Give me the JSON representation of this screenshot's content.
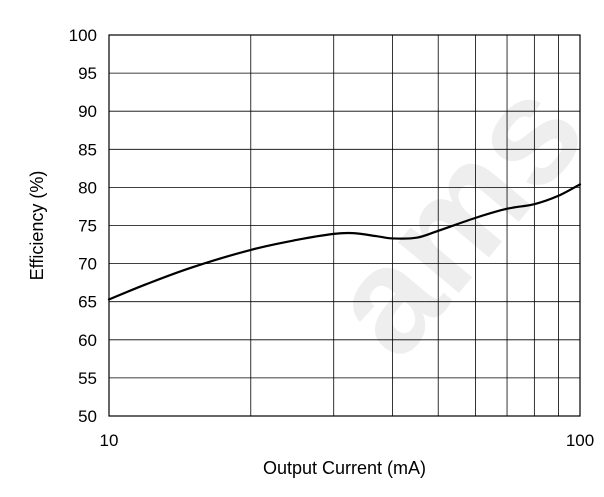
{
  "chart_data": {
    "type": "line",
    "title": "",
    "xlabel": "Output Current (mA)",
    "ylabel": "Efficiency (%)",
    "xscale": "log",
    "xlim": [
      10,
      100
    ],
    "ylim": [
      50,
      100
    ],
    "x_tick_labels": [
      "10",
      "100"
    ],
    "y_ticks": [
      50,
      55,
      60,
      65,
      70,
      75,
      80,
      85,
      90,
      95,
      100
    ],
    "grid": true,
    "legend": "none",
    "series": [
      {
        "color": "#000000",
        "x": [
          10,
          12,
          15,
          20,
          25,
          30,
          33,
          37,
          40,
          45,
          50,
          60,
          70,
          80,
          90,
          100
        ],
        "y": [
          65.3,
          67.3,
          69.5,
          71.8,
          73.1,
          73.9,
          74.0,
          73.6,
          73.3,
          73.4,
          74.3,
          76.0,
          77.2,
          77.8,
          78.9,
          80.4
        ]
      }
    ]
  },
  "watermark": {
    "text": "ams"
  }
}
